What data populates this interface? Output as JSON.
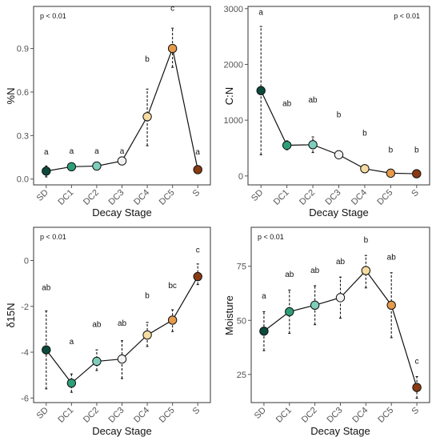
{
  "colors": {
    "SD": "#0b4a3c",
    "DC1": "#2e9e7a",
    "DC2": "#7fcdbb",
    "DC3": "#f2f2f2",
    "DC4": "#f6dca0",
    "DC5": "#e69a4c",
    "S": "#8a3a12"
  },
  "chart_data": [
    {
      "type": "line",
      "id": "nitrogen",
      "xlabel": "Decay Stage",
      "ylabel": "%N",
      "annotation": "p < 0.01",
      "annotation_pos": "top-left",
      "categories": [
        "SD",
        "DC1",
        "DC2",
        "DC3",
        "DC4",
        "DC5",
        "S"
      ],
      "values": [
        0.055,
        0.085,
        0.09,
        0.125,
        0.43,
        0.9,
        0.065
      ],
      "err_low": [
        0.015,
        0.07,
        0.065,
        0.11,
        0.23,
        0.77,
        0.055
      ],
      "err_high": [
        0.09,
        0.105,
        0.115,
        0.14,
        0.62,
        1.04,
        0.075
      ],
      "letters": [
        "a",
        "a",
        "a",
        "a",
        "b",
        "c",
        "a"
      ],
      "letter_y": [
        0.17,
        0.175,
        0.175,
        0.175,
        0.81,
        1.16,
        0.17
      ],
      "ylim": [
        -0.04,
        1.19
      ],
      "yticks": [
        0.0,
        0.3,
        0.6,
        0.9
      ],
      "ytick_labels": [
        "0.0",
        "0.3",
        "0.6",
        "0.9"
      ]
    },
    {
      "type": "line",
      "id": "cn_ratio",
      "xlabel": "Decay Stage",
      "ylabel": "C:N",
      "annotation": "p < 0.01",
      "annotation_pos": "top-right",
      "categories": [
        "SD",
        "DC1",
        "DC2",
        "DC3",
        "DC4",
        "DC5",
        "S"
      ],
      "values": [
        1530,
        550,
        560,
        380,
        130,
        50,
        40
      ],
      "err_low": [
        380,
        470,
        420,
        340,
        60,
        30,
        20
      ],
      "err_high": [
        2680,
        630,
        700,
        420,
        200,
        70,
        60
      ],
      "letters": [
        "a",
        "ab",
        "ab",
        "b",
        "b",
        "b",
        "b"
      ],
      "letter_y": [
        2890,
        1250,
        1320,
        1050,
        720,
        420,
        420
      ],
      "ylim": [
        -160,
        3040
      ],
      "yticks": [
        0,
        1000,
        2000,
        3000
      ],
      "ytick_labels": [
        "0",
        "1000",
        "2000",
        "3000"
      ]
    },
    {
      "type": "line",
      "id": "delta15n",
      "xlabel": "Decay Stage",
      "ylabel": "δ15N",
      "annotation": "p < 0.01",
      "annotation_pos": "top-left",
      "categories": [
        "SD",
        "DC1",
        "DC2",
        "DC3",
        "DC4",
        "DC5",
        "S"
      ],
      "values": [
        -3.9,
        -5.35,
        -4.4,
        -4.3,
        -3.25,
        -2.6,
        -0.7
      ],
      "err_low": [
        -5.6,
        -5.75,
        -4.8,
        -5.15,
        -3.75,
        -3.1,
        -1.05
      ],
      "err_high": [
        -2.2,
        -4.95,
        -3.9,
        -3.5,
        -2.7,
        -2.15,
        -0.15
      ],
      "letters": [
        "ab",
        "a",
        "ab",
        "ab",
        "b",
        "bc",
        "c"
      ],
      "letter_y": [
        -1.3,
        -3.65,
        -2.9,
        -2.85,
        -1.65,
        -1.2,
        0.35
      ],
      "ylim": [
        -6.2,
        1.45
      ],
      "yticks": [
        -6,
        -4,
        -2,
        0
      ],
      "ytick_labels": [
        "-6",
        "-4",
        "-2",
        "0"
      ]
    },
    {
      "type": "line",
      "id": "moisture",
      "xlabel": "Decay Stage",
      "ylabel": "Moisture",
      "annotation": "p < 0.01",
      "annotation_pos": "top-left",
      "categories": [
        "SD",
        "DC1",
        "DC2",
        "DC3",
        "DC4",
        "DC5",
        "S"
      ],
      "values": [
        45,
        54,
        57,
        60.5,
        73,
        57,
        19
      ],
      "err_low": [
        36,
        44,
        48,
        51,
        65,
        42,
        14
      ],
      "err_high": [
        54,
        64,
        66,
        70,
        80,
        72,
        24
      ],
      "letters": [
        "a",
        "ab",
        "ab",
        "ab",
        "b",
        "ab",
        "c"
      ],
      "letter_y": [
        60,
        70,
        72,
        76,
        86,
        78,
        30
      ],
      "ylim": [
        12,
        93
      ],
      "yticks": [
        25,
        50,
        75
      ],
      "ytick_labels": [
        "25",
        "50",
        "75"
      ]
    }
  ]
}
